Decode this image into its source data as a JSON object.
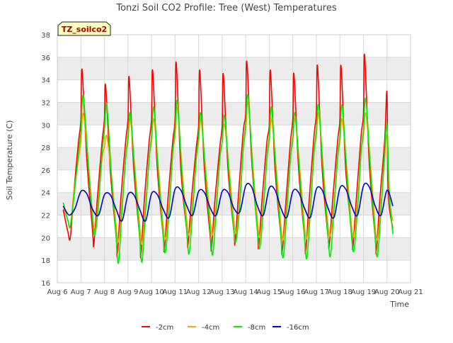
{
  "colors": {
    "band": "#ececec",
    "grid": "#d8d8d8",
    "axis": "#cccccc",
    "text": "#444444",
    "site_badge_bg": "#ffffc0",
    "site_badge_text": "#aa0000"
  },
  "chart_data": {
    "type": "line",
    "title": "Tonzi Soil CO2 Profile: Tree (West) Temperatures",
    "site_label": "TZ_soilco2",
    "xlabel": "Time",
    "ylabel": "Soil Temperature (C)",
    "xlim": [
      6,
      21
    ],
    "ylim": [
      16,
      38
    ],
    "grid": true,
    "alternating_bands": true,
    "legend_position": "bottom-center",
    "x_ticks": [
      {
        "value": 6,
        "label": "Aug 6"
      },
      {
        "value": 7,
        "label": "Aug 7"
      },
      {
        "value": 8,
        "label": "Aug 8"
      },
      {
        "value": 9,
        "label": "Aug 9"
      },
      {
        "value": 10,
        "label": "Aug 10"
      },
      {
        "value": 11,
        "label": "Aug 11"
      },
      {
        "value": 12,
        "label": "Aug 12"
      },
      {
        "value": 13,
        "label": "Aug 13"
      },
      {
        "value": 14,
        "label": "Aug 14"
      },
      {
        "value": 15,
        "label": "Aug 15"
      },
      {
        "value": 16,
        "label": "Aug 16"
      },
      {
        "value": 17,
        "label": "Aug 17"
      },
      {
        "value": 18,
        "label": "Aug 18"
      },
      {
        "value": 19,
        "label": "Aug 19"
      },
      {
        "value": 20,
        "label": "Aug 20"
      },
      {
        "value": 21,
        "label": "Aug 21"
      }
    ],
    "y_ticks": [
      16,
      18,
      20,
      22,
      24,
      26,
      28,
      30,
      32,
      34,
      36,
      38
    ],
    "series": [
      {
        "name": "-2cm",
        "color": "#ff0000",
        "x": [
          6.25,
          6.45,
          6.55,
          6.7,
          6.9,
          7.0,
          7.05,
          7.25,
          7.5,
          7.55,
          7.7,
          7.9,
          8.0,
          8.05,
          8.25,
          8.5,
          8.55,
          8.7,
          8.9,
          9.0,
          9.05,
          9.25,
          9.5,
          9.55,
          9.7,
          9.9,
          10.0,
          10.05,
          10.25,
          10.5,
          10.55,
          10.7,
          10.9,
          11.0,
          11.05,
          11.25,
          11.5,
          11.55,
          11.7,
          11.9,
          12.0,
          12.05,
          12.25,
          12.5,
          12.55,
          12.7,
          12.9,
          13.0,
          13.05,
          13.25,
          13.5,
          13.55,
          13.7,
          13.9,
          14.0,
          14.05,
          14.25,
          14.5,
          14.55,
          14.7,
          14.9,
          15.0,
          15.05,
          15.25,
          15.5,
          15.55,
          15.7,
          15.9,
          16.0,
          16.05,
          16.25,
          16.5,
          16.55,
          16.7,
          16.9,
          17.0,
          17.05,
          17.25,
          17.5,
          17.55,
          17.7,
          17.9,
          18.0,
          18.05,
          18.25,
          18.5,
          18.55,
          18.7,
          18.9,
          19.0,
          19.05,
          19.25,
          19.5,
          19.55,
          19.7,
          19.9,
          20.0,
          20.05,
          20.25
        ],
        "values": [
          22.5,
          20.5,
          20.0,
          24.0,
          28.5,
          30.5,
          34.9,
          27.0,
          20.5,
          19.4,
          23.5,
          28.5,
          30.5,
          33.5,
          26.0,
          20.0,
          18.5,
          23.5,
          28.5,
          30.5,
          34.2,
          26.0,
          20.0,
          18.4,
          23.5,
          28.5,
          30.5,
          34.8,
          26.0,
          20.0,
          19.0,
          23.5,
          28.5,
          30.5,
          35.5,
          26.0,
          20.5,
          19.3,
          23.5,
          28.0,
          30.0,
          34.8,
          26.0,
          20.0,
          19.1,
          23.5,
          28.0,
          30.0,
          34.5,
          26.0,
          20.5,
          19.6,
          24.0,
          29.5,
          31.0,
          35.6,
          27.0,
          20.5,
          19.2,
          23.5,
          28.5,
          30.0,
          34.8,
          26.0,
          20.0,
          18.7,
          23.0,
          28.5,
          30.5,
          34.5,
          26.0,
          20.0,
          18.8,
          23.5,
          29.0,
          31.0,
          35.2,
          26.0,
          20.0,
          19.3,
          23.5,
          28.5,
          30.5,
          35.2,
          26.0,
          20.5,
          19.1,
          23.5,
          29.0,
          31.0,
          36.2,
          26.5,
          20.0,
          18.8,
          23.5,
          28.5,
          32.9,
          24.0,
          20.8
        ]
      },
      {
        "name": "-4cm",
        "color": "#ffa500",
        "x": [
          6.25,
          6.45,
          6.55,
          6.7,
          6.9,
          7.0,
          7.1,
          7.3,
          7.5,
          7.6,
          7.75,
          7.9,
          8.0,
          8.1,
          8.3,
          8.5,
          8.6,
          8.75,
          8.9,
          9.0,
          9.1,
          9.3,
          9.5,
          9.6,
          9.75,
          9.9,
          10.0,
          10.1,
          10.3,
          10.5,
          10.6,
          10.75,
          10.9,
          11.0,
          11.1,
          11.3,
          11.5,
          11.6,
          11.75,
          11.9,
          12.0,
          12.1,
          12.3,
          12.5,
          12.6,
          12.75,
          12.9,
          13.0,
          13.1,
          13.3,
          13.5,
          13.6,
          13.75,
          13.9,
          14.0,
          14.1,
          14.3,
          14.5,
          14.6,
          14.75,
          14.9,
          15.0,
          15.1,
          15.3,
          15.5,
          15.6,
          15.75,
          15.9,
          16.0,
          16.1,
          16.3,
          16.5,
          16.6,
          16.75,
          16.9,
          17.0,
          17.1,
          17.3,
          17.5,
          17.6,
          17.75,
          17.9,
          18.0,
          18.1,
          18.3,
          18.5,
          18.6,
          18.75,
          18.9,
          19.0,
          19.1,
          19.3,
          19.5,
          19.6,
          19.75,
          19.9,
          20.0,
          20.1,
          20.25
        ],
        "values": [
          22.8,
          21.5,
          21.0,
          24.0,
          27.0,
          28.5,
          31.0,
          27.0,
          22.0,
          20.5,
          23.5,
          27.0,
          28.0,
          29.0,
          25.5,
          21.0,
          19.7,
          23.0,
          27.0,
          28.5,
          30.5,
          26.0,
          21.0,
          19.5,
          23.0,
          27.0,
          28.5,
          30.5,
          26.0,
          21.0,
          20.0,
          23.0,
          27.5,
          29.0,
          31.5,
          26.0,
          21.5,
          20.3,
          23.0,
          27.0,
          28.5,
          30.5,
          26.0,
          21.5,
          20.3,
          23.0,
          27.0,
          28.5,
          30.0,
          26.0,
          21.5,
          20.5,
          23.5,
          28.0,
          29.5,
          32.0,
          26.5,
          21.5,
          20.1,
          23.0,
          27.0,
          28.5,
          30.5,
          26.0,
          21.0,
          19.9,
          23.0,
          27.0,
          28.5,
          30.5,
          26.0,
          21.0,
          20.0,
          23.0,
          27.5,
          29.0,
          31.0,
          26.0,
          21.0,
          20.3,
          23.0,
          27.0,
          28.5,
          30.5,
          26.0,
          21.0,
          20.2,
          23.0,
          27.5,
          29.0,
          31.0,
          26.5,
          21.0,
          19.9,
          23.0,
          27.0,
          29.0,
          23.5,
          21.5
        ]
      },
      {
        "name": "-8cm",
        "color": "#00ee00",
        "x": [
          6.25,
          6.45,
          6.55,
          6.7,
          6.9,
          7.0,
          7.1,
          7.3,
          7.5,
          7.6,
          7.75,
          7.9,
          8.0,
          8.1,
          8.3,
          8.5,
          8.6,
          8.75,
          8.9,
          9.0,
          9.1,
          9.3,
          9.5,
          9.6,
          9.75,
          9.9,
          10.0,
          10.1,
          10.3,
          10.5,
          10.6,
          10.75,
          10.9,
          11.0,
          11.1,
          11.3,
          11.5,
          11.6,
          11.75,
          11.9,
          12.0,
          12.1,
          12.3,
          12.5,
          12.6,
          12.75,
          12.9,
          13.0,
          13.1,
          13.3,
          13.5,
          13.6,
          13.75,
          13.9,
          14.0,
          14.1,
          14.3,
          14.5,
          14.6,
          14.75,
          14.9,
          15.0,
          15.1,
          15.3,
          15.5,
          15.6,
          15.75,
          15.9,
          16.0,
          16.1,
          16.3,
          16.5,
          16.6,
          16.75,
          16.9,
          17.0,
          17.1,
          17.3,
          17.5,
          17.6,
          17.75,
          17.9,
          18.0,
          18.1,
          18.3,
          18.5,
          18.6,
          18.75,
          18.9,
          19.0,
          19.1,
          19.3,
          19.5,
          19.6,
          19.75,
          19.9,
          20.0,
          20.1,
          20.25
        ],
        "values": [
          23.1,
          21.5,
          21.0,
          23.5,
          27.5,
          29.5,
          32.6,
          27.0,
          21.5,
          20.3,
          23.0,
          27.5,
          29.5,
          31.8,
          25.5,
          20.0,
          17.8,
          22.5,
          27.0,
          29.0,
          31.0,
          25.5,
          20.0,
          17.9,
          22.5,
          27.0,
          29.0,
          31.5,
          25.5,
          20.0,
          18.8,
          22.5,
          27.5,
          29.5,
          32.1,
          25.5,
          20.5,
          18.6,
          22.5,
          27.0,
          29.0,
          31.0,
          25.5,
          20.5,
          18.5,
          22.5,
          27.0,
          28.5,
          30.8,
          25.5,
          20.5,
          19.8,
          23.0,
          28.0,
          30.0,
          32.6,
          26.0,
          20.5,
          19.1,
          22.5,
          27.0,
          29.0,
          31.5,
          25.5,
          20.0,
          18.3,
          22.5,
          27.0,
          29.0,
          31.0,
          25.5,
          20.0,
          18.2,
          22.5,
          27.5,
          29.5,
          31.7,
          25.5,
          20.0,
          18.4,
          22.5,
          27.0,
          29.0,
          31.7,
          25.5,
          20.0,
          18.9,
          22.5,
          27.5,
          29.5,
          32.3,
          26.0,
          20.0,
          18.4,
          22.5,
          27.5,
          30.0,
          24.0,
          20.3
        ]
      },
      {
        "name": "-16cm",
        "color": "#0000cc",
        "x": [
          6.25,
          6.5,
          6.75,
          7.0,
          7.25,
          7.5,
          7.75,
          8.0,
          8.25,
          8.5,
          8.75,
          9.0,
          9.25,
          9.5,
          9.75,
          10.0,
          10.25,
          10.5,
          10.75,
          11.0,
          11.25,
          11.5,
          11.75,
          12.0,
          12.25,
          12.5,
          12.75,
          13.0,
          13.25,
          13.5,
          13.75,
          14.0,
          14.25,
          14.5,
          14.75,
          15.0,
          15.25,
          15.5,
          15.75,
          16.0,
          16.25,
          16.5,
          16.75,
          17.0,
          17.25,
          17.5,
          17.75,
          18.0,
          18.25,
          18.5,
          18.75,
          19.0,
          19.25,
          19.5,
          19.75,
          20.0,
          20.25
        ],
        "values": [
          22.8,
          22.0,
          22.6,
          24.1,
          23.9,
          22.5,
          22.0,
          23.8,
          23.8,
          22.5,
          21.5,
          23.8,
          23.8,
          22.5,
          21.5,
          23.9,
          23.8,
          22.5,
          21.8,
          24.3,
          24.2,
          22.8,
          22.0,
          24.1,
          24.0,
          22.6,
          22.0,
          24.1,
          24.0,
          22.6,
          22.3,
          24.6,
          24.5,
          22.8,
          22.0,
          24.4,
          24.2,
          22.6,
          21.8,
          24.1,
          24.0,
          22.6,
          21.8,
          24.3,
          24.2,
          22.6,
          21.8,
          24.4,
          24.3,
          22.8,
          22.0,
          24.6,
          24.5,
          22.8,
          22.0,
          24.2,
          22.8
        ]
      }
    ]
  }
}
